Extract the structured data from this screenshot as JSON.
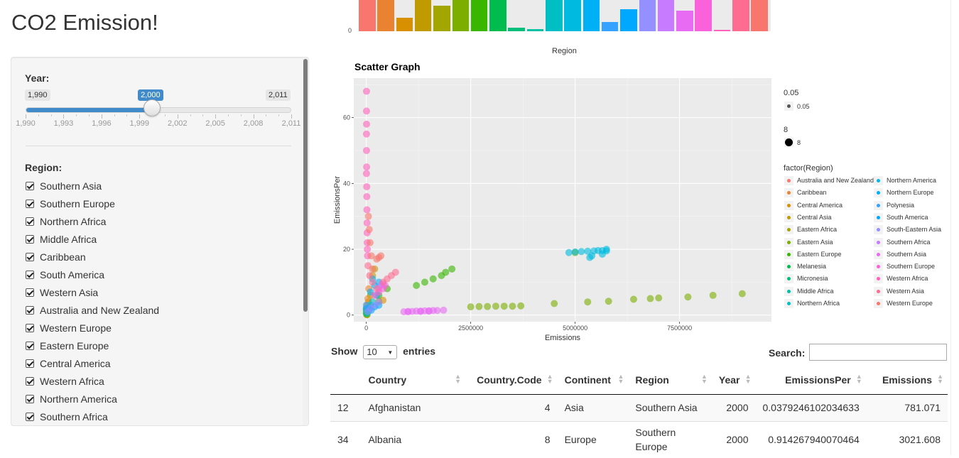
{
  "app": {
    "title": "CO2 Emission!"
  },
  "sidebar": {
    "year_label": "Year:",
    "slider": {
      "min": "1,990",
      "max": "2,011",
      "value": "2,000",
      "min_num": 1990,
      "max_num": 2011,
      "value_num": 2000,
      "tick_labels": [
        "1,990",
        "1,993",
        "1,996",
        "1,999",
        "2,002",
        "2,005",
        "2,008",
        "2,011"
      ]
    },
    "region_label": "Region:",
    "regions": [
      "Southern Asia",
      "Southern Europe",
      "Northern Africa",
      "Middle Africa",
      "Caribbean",
      "South America",
      "Western Asia",
      "Australia and New Zealand",
      "Western Europe",
      "Eastern Europe",
      "Central America",
      "Western Africa",
      "Northern America",
      "Southern Africa"
    ]
  },
  "bar_chart": {
    "xlabel": "Region",
    "y_tick": "0"
  },
  "chart_data": {
    "type": "scatter",
    "title": "Scatter Graph",
    "xlabel": "Emissions",
    "ylabel": "EmissionsPer",
    "xlim": [
      -300000,
      9700000
    ],
    "ylim": [
      -2,
      72
    ],
    "x_ticks": [
      0,
      2500000,
      5000000,
      7500000
    ],
    "x_tick_labels": [
      "0",
      "2500000",
      "5000000",
      "7500000"
    ],
    "y_ticks": [
      0,
      20,
      40,
      60
    ],
    "y_tick_labels": [
      "0",
      "20",
      "40",
      "60"
    ],
    "legend": {
      "alpha_title": "0.05",
      "alpha_value": "0.05",
      "size_title": "8",
      "size_value": "8",
      "color_title": "factor(Region)"
    },
    "series": [
      {
        "name": "Australia and New Zealand",
        "color": "#F8766D",
        "points": [
          [
            250000,
            17
          ],
          [
            300000,
            17.5
          ],
          [
            350000,
            18
          ]
        ]
      },
      {
        "name": "Caribbean",
        "color": "#EA8331",
        "points": [
          [
            20000,
            3
          ],
          [
            40000,
            5
          ],
          [
            60000,
            8
          ],
          [
            10000,
            2
          ]
        ]
      },
      {
        "name": "Central America",
        "color": "#D89000",
        "points": [
          [
            50000,
            4
          ],
          [
            300000,
            4.2
          ],
          [
            400000,
            4.5
          ],
          [
            20000,
            2
          ]
        ]
      },
      {
        "name": "Central Asia",
        "color": "#C09B00",
        "points": [
          [
            30000,
            2
          ],
          [
            100000,
            6
          ],
          [
            150000,
            12
          ],
          [
            200000,
            14
          ]
        ]
      },
      {
        "name": "Eastern Africa",
        "color": "#A3A500",
        "points": [
          [
            10000,
            0.1
          ],
          [
            15000,
            0.2
          ],
          [
            20000,
            0.1
          ]
        ]
      },
      {
        "name": "Eastern Asia",
        "color": "#7CAE00",
        "points": [
          [
            5000000,
            19
          ],
          [
            2500000,
            2.5
          ],
          [
            2700000,
            2.6
          ],
          [
            2900000,
            2.6
          ],
          [
            3100000,
            2.7
          ],
          [
            3300000,
            2.7
          ],
          [
            3500000,
            2.7
          ],
          [
            3700000,
            2.8
          ],
          [
            4500000,
            3.5
          ],
          [
            5300000,
            4
          ],
          [
            5800000,
            4.2
          ],
          [
            6400000,
            4.8
          ],
          [
            6800000,
            5
          ],
          [
            7000000,
            5.2
          ],
          [
            7700000,
            5.5
          ],
          [
            8300000,
            6
          ],
          [
            9000000,
            6.5
          ]
        ]
      },
      {
        "name": "Eastern Europe",
        "color": "#39B600",
        "points": [
          [
            1200000,
            9
          ],
          [
            1400000,
            10
          ],
          [
            1600000,
            11
          ],
          [
            1800000,
            12
          ],
          [
            1900000,
            13
          ],
          [
            2050000,
            14
          ],
          [
            300000,
            6
          ],
          [
            500000,
            8
          ]
        ]
      },
      {
        "name": "Melanesia",
        "color": "#00BB4E",
        "points": [
          [
            2000,
            0.5
          ],
          [
            5000,
            1
          ]
        ]
      },
      {
        "name": "Micronesia",
        "color": "#00BF7D",
        "points": [
          [
            1000,
            1.5
          ],
          [
            2000,
            2
          ]
        ]
      },
      {
        "name": "Middle Africa",
        "color": "#00C1A3",
        "points": [
          [
            20000,
            0.5
          ],
          [
            40000,
            1
          ]
        ]
      },
      {
        "name": "Northern Africa",
        "color": "#00BFC4",
        "points": [
          [
            50000,
            2
          ],
          [
            100000,
            3
          ],
          [
            150000,
            4
          ]
        ]
      },
      {
        "name": "Northern America",
        "color": "#00BAE0",
        "points": [
          [
            4850000,
            19
          ],
          [
            5000000,
            19.2
          ],
          [
            5150000,
            19.3
          ],
          [
            5300000,
            19.4
          ],
          [
            5450000,
            19.5
          ],
          [
            5550000,
            19.6
          ],
          [
            5650000,
            19.6
          ],
          [
            5750000,
            19.5
          ],
          [
            5650000,
            18.5
          ],
          [
            5750000,
            20
          ],
          [
            5350000,
            17.5
          ],
          [
            5400000,
            18
          ]
        ]
      },
      {
        "name": "Northern Europe",
        "color": "#00B0F6",
        "points": [
          [
            100000,
            7
          ],
          [
            200000,
            9
          ],
          [
            300000,
            10
          ],
          [
            150000,
            11
          ],
          [
            250000,
            6
          ]
        ]
      },
      {
        "name": "Polynesia",
        "color": "#35A2FF",
        "points": [
          [
            500,
            2
          ],
          [
            800,
            3
          ]
        ]
      },
      {
        "name": "South America",
        "color": "#00A9FF",
        "points": [
          [
            80000,
            2
          ],
          [
            200000,
            2.5
          ],
          [
            300000,
            3
          ],
          [
            120000,
            1.5
          ]
        ]
      },
      {
        "name": "South-Eastern Asia",
        "color": "#9590FF",
        "points": [
          [
            30000,
            1
          ],
          [
            100000,
            2
          ],
          [
            200000,
            3
          ],
          [
            300000,
            4
          ]
        ]
      },
      {
        "name": "Southern Africa",
        "color": "#C77CFF",
        "points": [
          [
            300000,
            8
          ],
          [
            350000,
            9
          ],
          [
            400000,
            9.5
          ]
        ]
      },
      {
        "name": "Southern Asia",
        "color": "#E76BF3",
        "points": [
          [
            900000,
            1
          ],
          [
            1000000,
            1.1
          ],
          [
            1100000,
            1.1
          ],
          [
            1200000,
            1.2
          ],
          [
            1300000,
            1.2
          ],
          [
            1400000,
            1.3
          ],
          [
            1500000,
            1.3
          ],
          [
            1600000,
            1.4
          ],
          [
            1700000,
            1.4
          ],
          [
            1850000,
            1.5
          ],
          [
            1300000,
            1.1
          ],
          [
            1500000,
            1.2
          ],
          [
            1000000,
            1.0
          ]
        ]
      },
      {
        "name": "Southern Europe",
        "color": "#FA62DB",
        "points": [
          [
            200000,
            6
          ],
          [
            300000,
            7
          ],
          [
            400000,
            8
          ],
          [
            450000,
            9
          ]
        ]
      },
      {
        "name": "Western Africa",
        "color": "#FF62BC",
        "points": [
          [
            5000,
            68
          ],
          [
            5000,
            62
          ],
          [
            6000,
            58
          ],
          [
            4000,
            55
          ],
          [
            5000,
            50
          ],
          [
            8000,
            45
          ],
          [
            4000,
            43
          ],
          [
            10000,
            39
          ],
          [
            12000,
            36
          ],
          [
            15000,
            32
          ],
          [
            18000,
            28
          ],
          [
            20000,
            25
          ],
          [
            22000,
            22
          ],
          [
            25000,
            20
          ],
          [
            30000,
            18
          ]
        ]
      },
      {
        "name": "Western Asia",
        "color": "#FF6C91",
        "points": [
          [
            40000,
            15
          ],
          [
            80000,
            12
          ],
          [
            150000,
            10
          ],
          [
            250000,
            8
          ],
          [
            400000,
            10
          ],
          [
            500000,
            11
          ],
          [
            600000,
            12
          ],
          [
            700000,
            13
          ]
        ]
      },
      {
        "name": "Western Europe",
        "color": "#F8766D",
        "points": [
          [
            50000,
            30
          ],
          [
            70000,
            26
          ],
          [
            90000,
            22
          ],
          [
            120000,
            18
          ],
          [
            150000,
            14
          ]
        ]
      }
    ]
  },
  "table": {
    "show_label": "Show",
    "entries_value": "10",
    "entries_label": "entries",
    "search_label": "Search:",
    "search_value": "",
    "columns": [
      "",
      "Country",
      "Country.Code",
      "Continent",
      "Region",
      "Year",
      "EmissionsPer",
      "Emissions"
    ],
    "rows": [
      [
        "12",
        "Afghanistan",
        "4",
        "Asia",
        "Southern Asia",
        "2000",
        "0.0379246102034633",
        "781.071"
      ],
      [
        "34",
        "Albania",
        "8",
        "Europe",
        "Southern Europe",
        "2000",
        "0.914267940070464",
        "3021.608"
      ]
    ]
  }
}
